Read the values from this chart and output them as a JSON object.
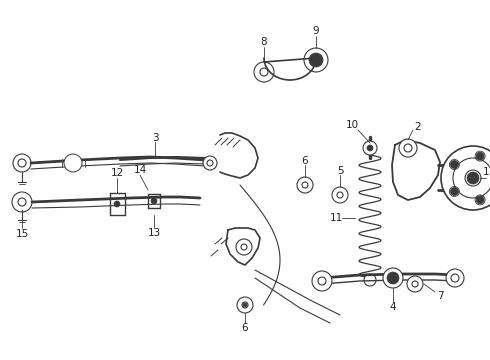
{
  "background_color": "#ffffff",
  "line_color": "#3a3a3a",
  "fig_width": 4.9,
  "fig_height": 3.6,
  "dpi": 100,
  "label_font_size": 7.5,
  "label_color": "#222222"
}
